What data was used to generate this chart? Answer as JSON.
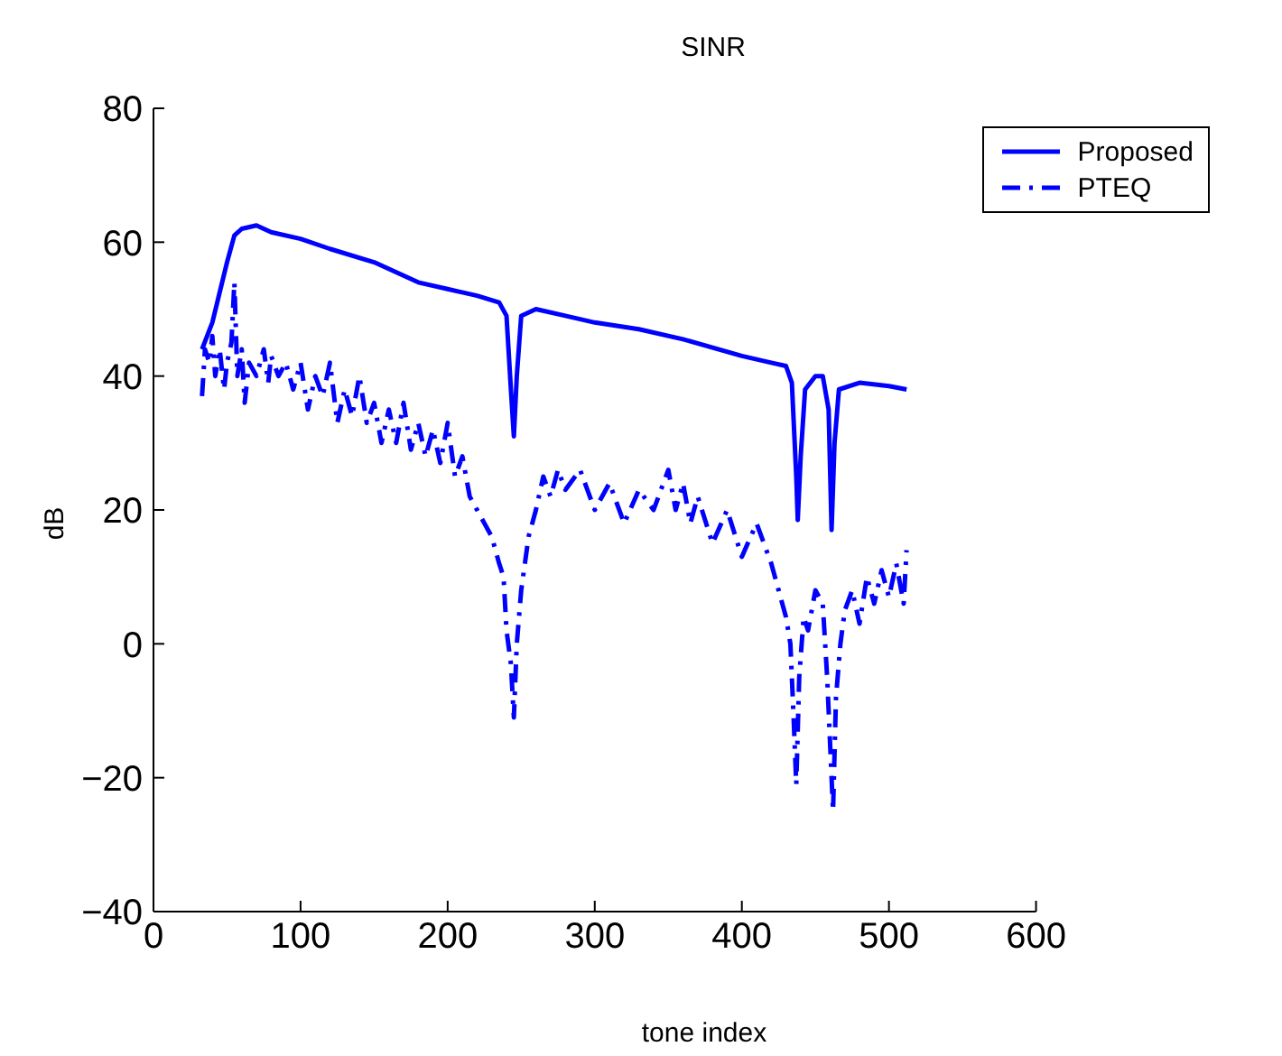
{
  "chart_data": {
    "type": "line",
    "title": "SINR",
    "xlabel": "tone index",
    "ylabel": "dB",
    "xlim": [
      0,
      600
    ],
    "xticks": [
      0,
      100,
      200,
      300,
      400,
      500,
      600
    ],
    "ylim": [
      -40,
      80
    ],
    "yticks": [
      -40,
      -20,
      0,
      20,
      40,
      60,
      80
    ],
    "grid": false,
    "legend": "top right",
    "marker": "none",
    "series": [
      {
        "name": "Proposed",
        "color": "#0000ff",
        "line_style": "solid",
        "x": [
          33,
          40,
          50,
          55,
          60,
          70,
          80,
          100,
          120,
          150,
          180,
          200,
          220,
          235,
          240,
          243,
          245,
          247,
          250,
          260,
          280,
          300,
          330,
          360,
          400,
          420,
          430,
          434,
          437,
          438,
          440,
          443,
          450,
          455,
          459,
          461,
          463,
          466,
          480,
          500,
          512
        ],
        "values": [
          44,
          48,
          57,
          61,
          62,
          62.5,
          61.5,
          60.5,
          59,
          57,
          54,
          53,
          52,
          51,
          49,
          38,
          31,
          40,
          49,
          50,
          49,
          48,
          47,
          45.5,
          43,
          42,
          41.5,
          39,
          25,
          18.5,
          28,
          38,
          40,
          40,
          35,
          17,
          30,
          38,
          39,
          38.5,
          38
        ]
      },
      {
        "name": "PTEQ",
        "color": "#0000ff",
        "line_style": "dashed",
        "x": [
          33,
          35,
          38,
          40,
          42,
          45,
          48,
          50,
          53,
          55,
          57,
          60,
          62,
          65,
          70,
          75,
          78,
          80,
          85,
          90,
          95,
          100,
          105,
          110,
          115,
          120,
          125,
          130,
          135,
          140,
          145,
          150,
          155,
          160,
          165,
          170,
          175,
          180,
          185,
          190,
          195,
          200,
          205,
          210,
          215,
          220,
          225,
          230,
          235,
          238,
          240,
          243,
          245,
          247,
          250,
          255,
          260,
          265,
          270,
          275,
          280,
          290,
          300,
          310,
          320,
          330,
          340,
          350,
          355,
          360,
          365,
          370,
          380,
          390,
          400,
          410,
          420,
          425,
          430,
          433,
          435,
          437,
          439,
          442,
          445,
          450,
          455,
          458,
          460,
          462,
          464,
          467,
          470,
          475,
          480,
          485,
          490,
          495,
          500,
          505,
          510,
          512
        ],
        "values": [
          37,
          44,
          42,
          46,
          40,
          44,
          38,
          42,
          45,
          54,
          40,
          44,
          36,
          42,
          40,
          44,
          39,
          43,
          40,
          42,
          38,
          42,
          35,
          40,
          37,
          42,
          33,
          38,
          34,
          40,
          33,
          36,
          30,
          35,
          30,
          36,
          29,
          33,
          28,
          32,
          27,
          33,
          25,
          28,
          22,
          20,
          18,
          16,
          12,
          10,
          2,
          -3,
          -11,
          0,
          8,
          16,
          20,
          25,
          22,
          26,
          23,
          26,
          20,
          24,
          18,
          23,
          20,
          26,
          20,
          24,
          18,
          22,
          15,
          20,
          13,
          18,
          12,
          8,
          4,
          0,
          -10,
          -21,
          -5,
          4,
          2,
          8,
          6,
          -5,
          -15,
          -25,
          -8,
          0,
          5,
          8,
          3,
          10,
          6,
          11,
          7,
          12,
          6,
          14
        ]
      }
    ]
  }
}
